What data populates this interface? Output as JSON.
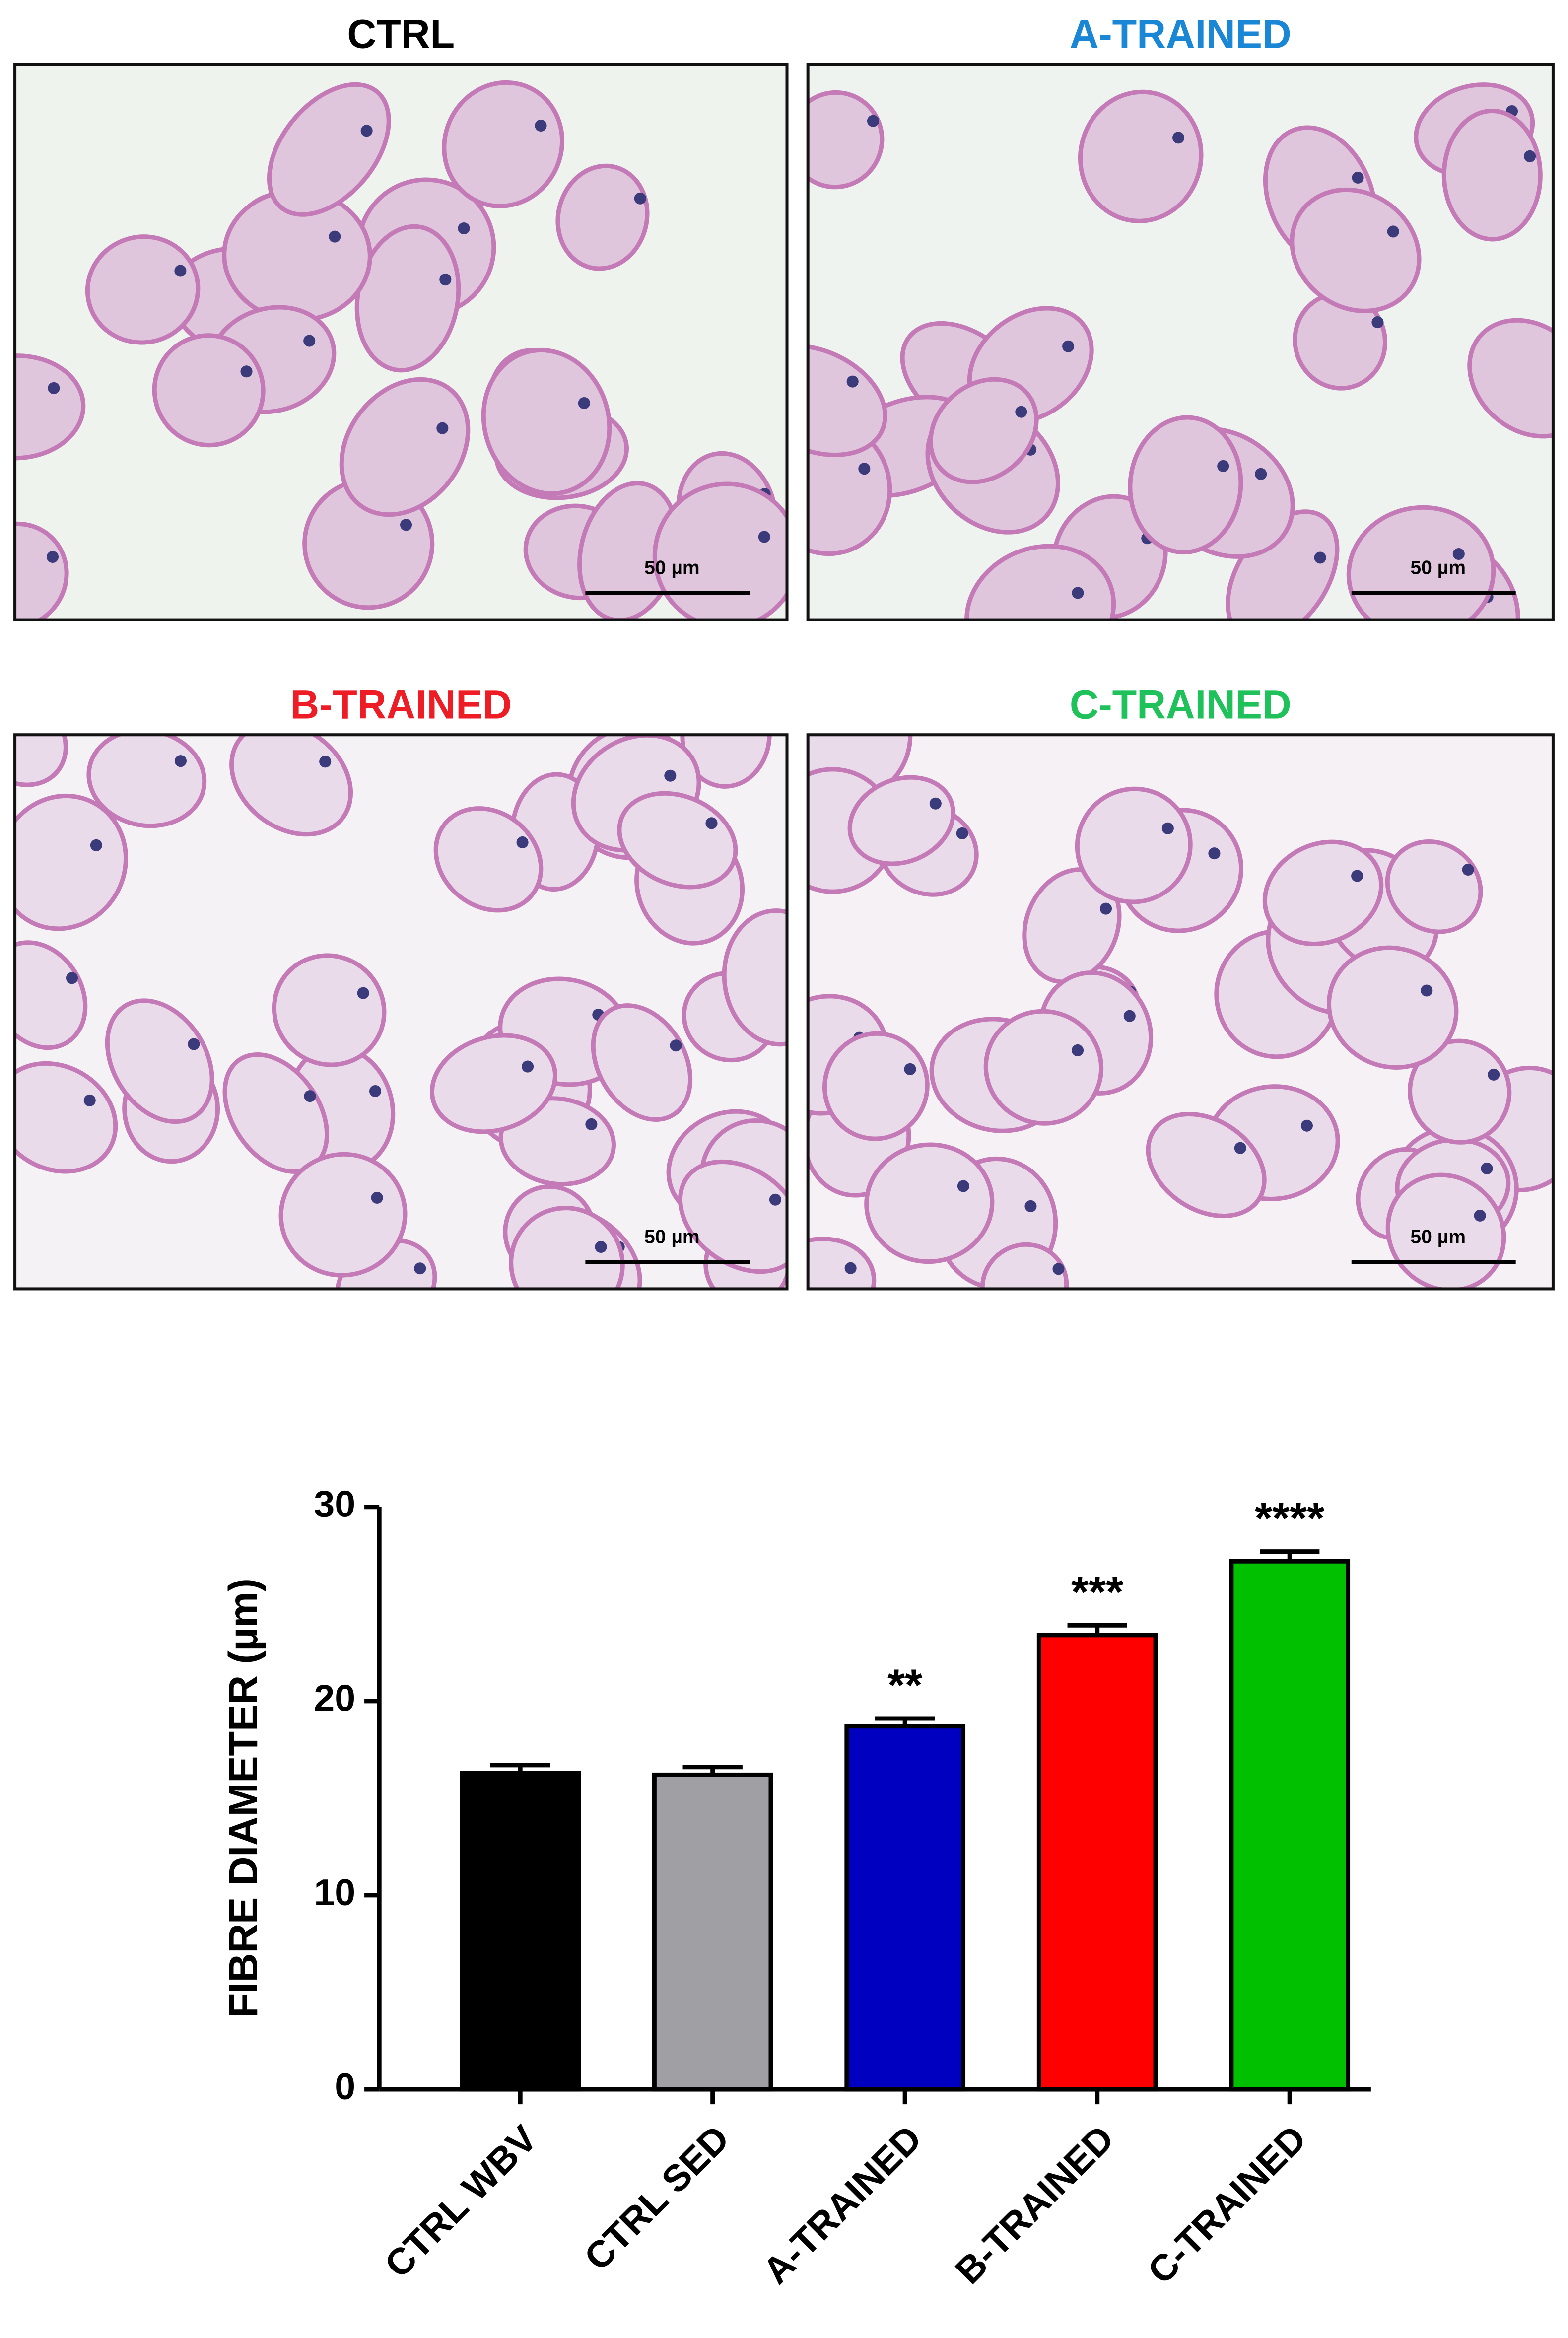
{
  "panels": [
    {
      "title": "CTRL",
      "title_color": "#000000",
      "scale_bar": "50 µm"
    },
    {
      "title": "A-TRAINED",
      "title_color": "#1a86d6",
      "scale_bar": "50 µm"
    },
    {
      "title": "B-TRAINED",
      "title_color": "#ee1c24",
      "scale_bar": "50 µm"
    },
    {
      "title": "C-TRAINED",
      "title_color": "#1fc25a",
      "scale_bar": "50 µm"
    }
  ],
  "chart_data": {
    "type": "bar",
    "y_label": "FIBRE DIAMETER (µm)",
    "categories": [
      "CTRL WBV",
      "CTRL SED",
      "A-TRAINED",
      "B-TRAINED",
      "C-TRAINED"
    ],
    "values": [
      16.3,
      16.2,
      18.7,
      23.4,
      27.2
    ],
    "errors": [
      0.4,
      0.4,
      0.4,
      0.5,
      0.5
    ],
    "colors": [
      "#000000",
      "#a09fa4",
      "#0000c0",
      "#ff0000",
      "#00c000"
    ],
    "annotations": [
      null,
      null,
      "**",
      "***",
      "****"
    ],
    "ylim": [
      0,
      30
    ],
    "yticks": [
      0,
      10,
      20,
      30
    ],
    "grid": false
  }
}
